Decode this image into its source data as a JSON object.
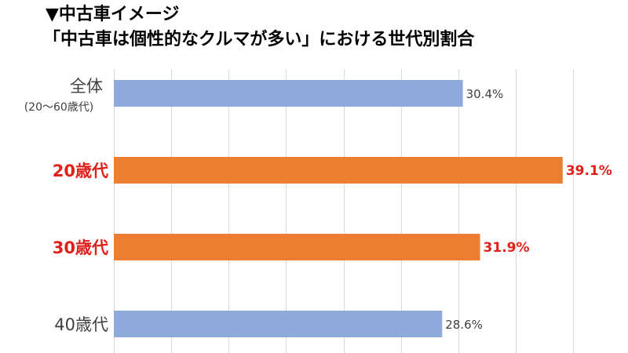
{
  "title": "▼中古車イメージ",
  "subtitle": "「中古車は個性的なクルマが多い」における世代別割合",
  "colors": {
    "highlight_bar": "#ED7D31",
    "normal_bar": "#8EAADB",
    "highlight_text": "#E0201A",
    "normal_text": "#404040",
    "grid": "#D9D9D9"
  },
  "chart_data": {
    "type": "bar",
    "orientation": "horizontal",
    "title": "「中古車は個性的なクルマが多い」における世代別割合",
    "xlabel": "",
    "ylabel": "",
    "xlim": [
      0,
      40
    ],
    "grid": true,
    "categories": [
      {
        "label": "全体",
        "sublabel": "(20～60歳代)",
        "highlight": false
      },
      {
        "label": "20歳代",
        "sublabel": "",
        "highlight": true
      },
      {
        "label": "30歳代",
        "sublabel": "",
        "highlight": true
      },
      {
        "label": "40歳代",
        "sublabel": "",
        "highlight": false
      }
    ],
    "values": [
      30.4,
      39.1,
      31.9,
      28.6
    ],
    "value_labels": [
      "30.4%",
      "39.1%",
      "31.9%",
      "28.6%"
    ]
  }
}
